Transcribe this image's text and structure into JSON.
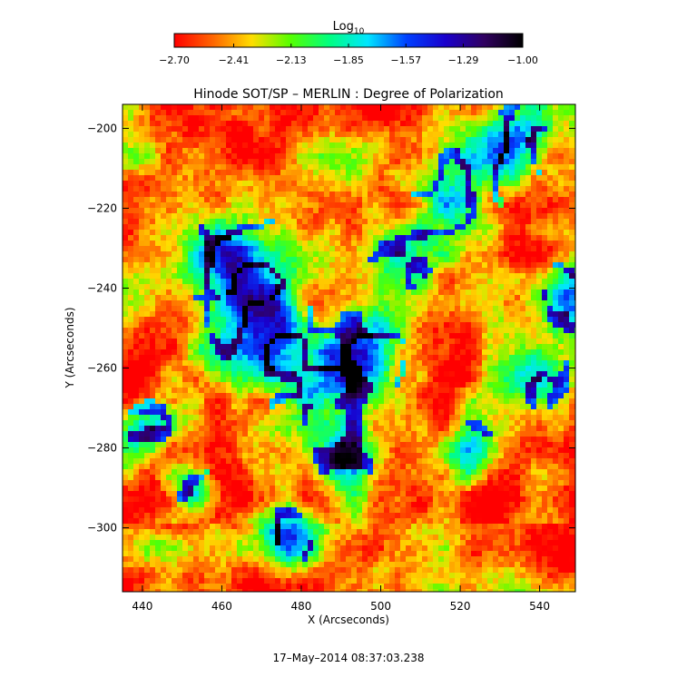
{
  "chart_data": {
    "type": "heatmap",
    "title": "Hinode SOT/SP – MERLIN : Degree of Polarization",
    "xlabel": "X (Arcseconds)",
    "ylabel": "Y (Arcseconds)",
    "xlim": [
      435,
      549
    ],
    "ylim": [
      -316,
      -194
    ],
    "x_ticks": [
      440,
      460,
      480,
      500,
      520,
      540
    ],
    "y_ticks": [
      -200,
      -220,
      -240,
      -260,
      -280,
      -300
    ],
    "x_tick_labels": [
      "440",
      "460",
      "480",
      "500",
      "520",
      "540"
    ],
    "y_tick_labels": [
      "−200",
      "−220",
      "−240",
      "−260",
      "−280",
      "−300"
    ],
    "grid": false,
    "colorbar": {
      "label_main": "Log",
      "label_sub": "10",
      "range": [
        -2.7,
        -1.0
      ],
      "ticks": [
        -2.7,
        -2.41,
        -2.13,
        -1.85,
        -1.57,
        -1.29,
        -1.0
      ],
      "tick_labels": [
        "−2.70",
        "−2.41",
        "−2.13",
        "−1.85",
        "−1.57",
        "−1.29",
        "−1.00"
      ],
      "placement": "top",
      "colormap": [
        "#ff0000",
        "#ff6600",
        "#ffdd00",
        "#55ff00",
        "#00ff80",
        "#00e5ff",
        "#0040ff",
        "#1a00cc",
        "#300060",
        "#000000"
      ]
    },
    "timestamp": "17–May–2014 08:37:03.238"
  }
}
